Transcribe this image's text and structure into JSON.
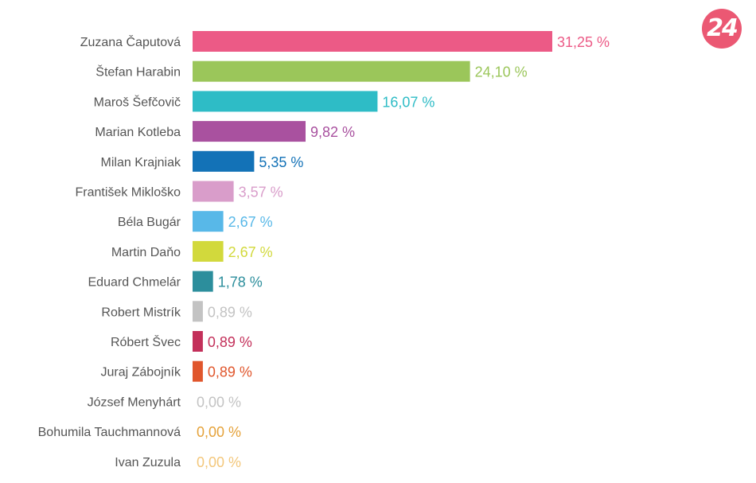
{
  "logo": {
    "text": "24",
    "color": "#eb5873"
  },
  "chart_data": {
    "type": "bar",
    "orientation": "horizontal",
    "categories": [
      "Zuzana Čaputová",
      "Štefan Harabin",
      "Maroš Šefčovič",
      "Marian Kotleba",
      "Milan Krajniak",
      "František Mikloško",
      "Béla Bugár",
      "Martin Daňo",
      "Eduard Chmelár",
      "Robert Mistrík",
      "Róbert Švec",
      "Juraj Zábojník",
      "József Menyhárt",
      "Bohumila Tauchmannová",
      "Ivan Zuzula"
    ],
    "values": [
      31.25,
      24.1,
      16.07,
      9.82,
      5.35,
      3.57,
      2.67,
      2.67,
      1.78,
      0.89,
      0.89,
      0.89,
      0.0,
      0.0,
      0.0
    ],
    "value_labels": [
      "31,25 %",
      "24,10 %",
      "16,07 %",
      "9,82 %",
      "5,35 %",
      "3,57 %",
      "2,67 %",
      "2,67 %",
      "1,78 %",
      "0,89 %",
      "0,89 %",
      "0,89 %",
      "0,00 %",
      "0,00 %",
      "0,00 %"
    ],
    "colors": [
      "#ec5a86",
      "#9bc65a",
      "#2ebcc6",
      "#a9519f",
      "#1372b7",
      "#d99dca",
      "#58b8e8",
      "#d2d93c",
      "#2c8e9c",
      "#c3c3c3",
      "#c3305a",
      "#e0562c",
      "#c3c3c3",
      "#e5a23a",
      "#f3c77b"
    ],
    "xlim": [
      0,
      31.25
    ],
    "title": "",
    "xlabel": "",
    "ylabel": "",
    "grid": false,
    "legend": "none"
  }
}
